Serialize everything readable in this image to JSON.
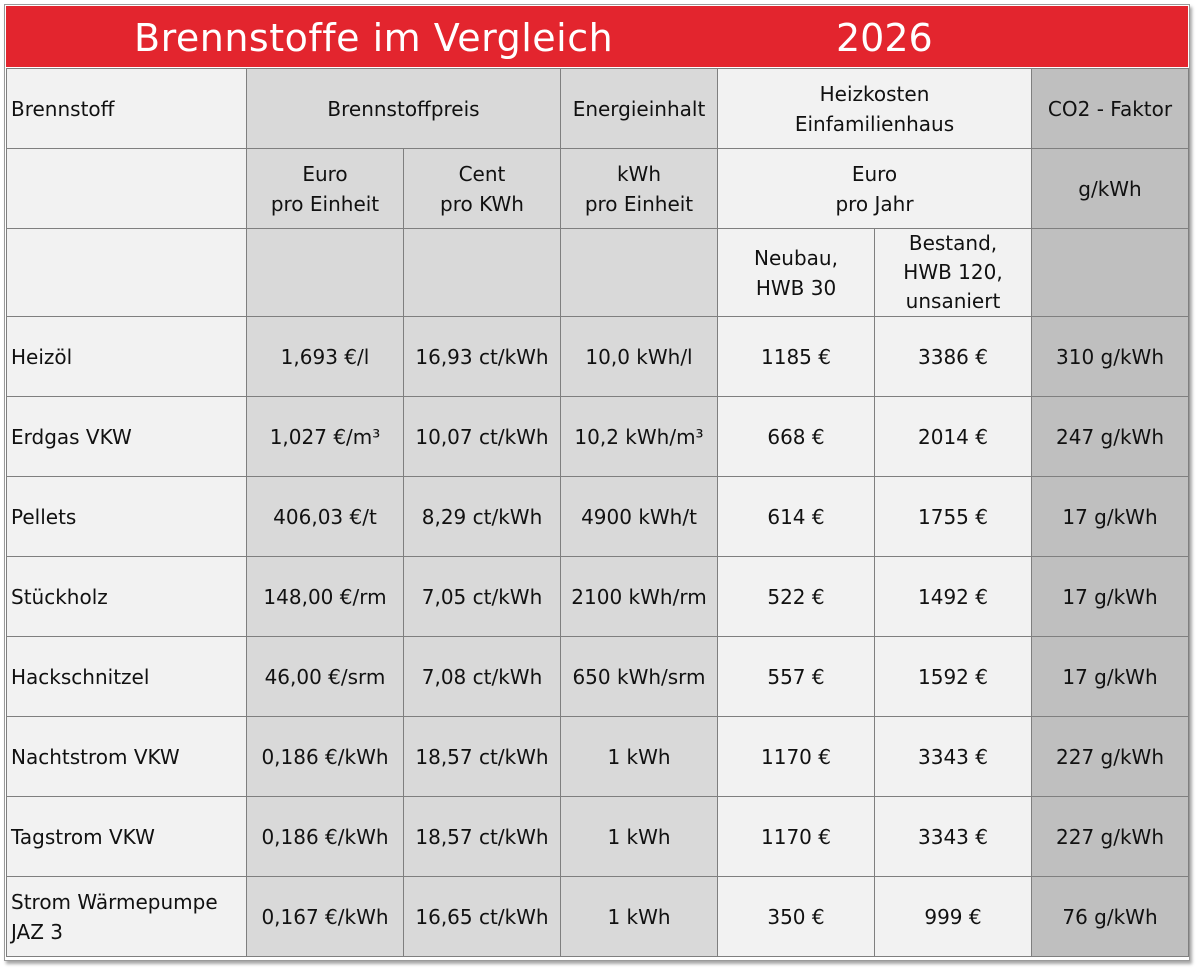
{
  "title": "Brennstoffe im Vergleich",
  "year": "2026",
  "headers": {
    "brennstoff": "Brennstoff",
    "preis": "Brennstoffpreis",
    "energie": "Energieinhalt",
    "heizkosten_1": "Heizkosten",
    "heizkosten_2": "Einfamilienhaus",
    "co2": "CO2 - Faktor"
  },
  "units": {
    "euro_1": "Euro",
    "euro_2": "pro Einheit",
    "cent_1": "Cent",
    "cent_2": "pro KWh",
    "kwh_1": "kWh",
    "kwh_2": "pro Einheit",
    "jahr_1": "Euro",
    "jahr_2": "pro Jahr",
    "co2": "g/kWh"
  },
  "sub": {
    "neubau_1": "Neubau,",
    "neubau_2": "HWB 30",
    "bestand_1": "Bestand,",
    "bestand_2": "HWB 120,",
    "bestand_3": "unsaniert"
  },
  "rows": [
    {
      "name": "Heizöl",
      "euro": "1,693 €/l",
      "cent": "16,93 ct/kWh",
      "energie": "10,0 kWh/l",
      "neubau": "1185 €",
      "bestand": "3386 €",
      "co2": "310 g/kWh"
    },
    {
      "name": "Erdgas VKW",
      "euro": "1,027 €/m³",
      "cent": "10,07 ct/kWh",
      "energie": "10,2 kWh/m³",
      "neubau": "668 €",
      "bestand": "2014 €",
      "co2": "247 g/kWh"
    },
    {
      "name": "Pellets",
      "euro": "406,03 €/t",
      "cent": "8,29 ct/kWh",
      "energie": "4900 kWh/t",
      "neubau": "614 €",
      "bestand": "1755 €",
      "co2": "17 g/kWh"
    },
    {
      "name": "Stückholz",
      "euro": "148,00 €/rm",
      "cent": "7,05 ct/kWh",
      "energie": "2100 kWh/rm",
      "neubau": "522 €",
      "bestand": "1492 €",
      "co2": "17 g/kWh"
    },
    {
      "name": "Hackschnitzel",
      "euro": "46,00 €/srm",
      "cent": "7,08 ct/kWh",
      "energie": "650 kWh/srm",
      "neubau": "557 €",
      "bestand": "1592 €",
      "co2": "17 g/kWh"
    },
    {
      "name": "Nachtstrom VKW",
      "euro": "0,186 €/kWh",
      "cent": "18,57 ct/kWh",
      "energie": "1 kWh",
      "neubau": "1170 €",
      "bestand": "3343 €",
      "co2": "227 g/kWh"
    },
    {
      "name": "Tagstrom VKW",
      "euro": "0,186 €/kWh",
      "cent": "18,57 ct/kWh",
      "energie": "1 kWh",
      "neubau": "1170 €",
      "bestand": "3343 €",
      "co2": "227 g/kWh"
    },
    {
      "name_1": "Strom Wärmepumpe",
      "name_2": "JAZ 3",
      "euro": "0,167 €/kWh",
      "cent": "16,65 ct/kWh",
      "energie": "1 kWh",
      "neubau": "350 €",
      "bestand": "999 €",
      "co2": "76 g/kWh"
    }
  ]
}
